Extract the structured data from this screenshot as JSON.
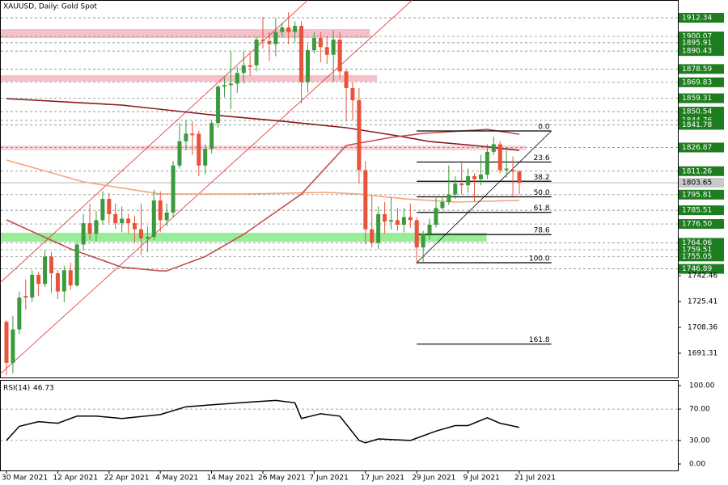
{
  "chart_data": {
    "type": "candlestick",
    "title": "XAUUSD, Daily:  Gold Spot",
    "categories": [
      "30 Mar 2021",
      null,
      null,
      null,
      null,
      null,
      null,
      null,
      "12 Apr 2021",
      null,
      null,
      null,
      null,
      null,
      null,
      null,
      "22 Apr 2021",
      null,
      null,
      null,
      null,
      null,
      null,
      null,
      "4 May 2021",
      null,
      null,
      null,
      null,
      null,
      null,
      null,
      "14 May 2021",
      null,
      null,
      null,
      null,
      null,
      null,
      null,
      "26 May 2021",
      null,
      null,
      null,
      null,
      null,
      null,
      null,
      "7 Jun 2021",
      null,
      null,
      null,
      null,
      null,
      null,
      null,
      "17 Jun 2021",
      null,
      null,
      null,
      null,
      null,
      null,
      null,
      "29 Jun 2021",
      null,
      null,
      null,
      null,
      null,
      null,
      null,
      "9 Jul 2021",
      null,
      null,
      null,
      null,
      null,
      null,
      null,
      "21 Jul 2021"
    ],
    "ohlc": [
      [
        1712,
        1713,
        1677,
        1685
      ],
      [
        1685,
        1716,
        1678,
        1707
      ],
      [
        1707,
        1732,
        1704,
        1728
      ],
      [
        1729,
        1740,
        1720,
        1728
      ],
      [
        1728,
        1746,
        1725,
        1743
      ],
      [
        1743,
        1745,
        1729,
        1737
      ],
      [
        1737,
        1759,
        1735,
        1755
      ],
      [
        1755,
        1758,
        1731,
        1744
      ],
      [
        1744,
        1746,
        1727,
        1732
      ],
      [
        1732,
        1749,
        1725,
        1746
      ],
      [
        1746,
        1751,
        1733,
        1736
      ],
      [
        1736,
        1765,
        1735,
        1763
      ],
      [
        1763,
        1783,
        1759,
        1777
      ],
      [
        1777,
        1790,
        1766,
        1770
      ],
      [
        1770,
        1785,
        1765,
        1779
      ],
      [
        1779,
        1798,
        1776,
        1793
      ],
      [
        1793,
        1797,
        1777,
        1783
      ],
      [
        1783,
        1790,
        1773,
        1777
      ],
      [
        1777,
        1788,
        1771,
        1780
      ],
      [
        1780,
        1783,
        1770,
        1777
      ],
      [
        1777,
        1782,
        1764,
        1773
      ],
      [
        1773,
        1790,
        1756,
        1767
      ],
      [
        1767,
        1775,
        1758,
        1768
      ],
      [
        1768,
        1799,
        1766,
        1792
      ],
      [
        1792,
        1798,
        1771,
        1779
      ],
      [
        1779,
        1790,
        1775,
        1784
      ],
      [
        1784,
        1818,
        1781,
        1815
      ],
      [
        1815,
        1843,
        1813,
        1831
      ],
      [
        1831,
        1845,
        1825,
        1836
      ],
      [
        1836,
        1844,
        1822,
        1835
      ],
      [
        1836,
        1838,
        1808,
        1815
      ],
      [
        1815,
        1829,
        1809,
        1826
      ],
      [
        1826,
        1845,
        1823,
        1843
      ],
      [
        1843,
        1868,
        1840,
        1867
      ],
      [
        1867,
        1873,
        1860,
        1868
      ],
      [
        1868,
        1890,
        1852,
        1869
      ],
      [
        1869,
        1880,
        1863,
        1876
      ],
      [
        1876,
        1890,
        1869,
        1881
      ],
      [
        1881,
        1889,
        1874,
        1880
      ],
      [
        1881,
        1900,
        1877,
        1898
      ],
      [
        1898,
        1913,
        1892,
        1897
      ],
      [
        1897,
        1903,
        1884,
        1895
      ],
      [
        1895,
        1912,
        1887,
        1903
      ],
      [
        1903,
        1909,
        1900,
        1906
      ],
      [
        1906,
        1916,
        1895,
        1903
      ],
      [
        1903,
        1910,
        1896,
        1907
      ],
      [
        1907,
        1910,
        1856,
        1870
      ],
      [
        1870,
        1895,
        1863,
        1891
      ],
      [
        1891,
        1903,
        1889,
        1899
      ],
      [
        1899,
        1903,
        1883,
        1893
      ],
      [
        1893,
        1900,
        1882,
        1888
      ],
      [
        1888,
        1904,
        1870,
        1898
      ],
      [
        1898,
        1903,
        1872,
        1877
      ],
      [
        1877,
        1878,
        1844,
        1866
      ],
      [
        1866,
        1870,
        1845,
        1858
      ],
      [
        1858,
        1866,
        1803,
        1812
      ],
      [
        1812,
        1818,
        1763,
        1773
      ],
      [
        1773,
        1795,
        1761,
        1764
      ],
      [
        1764,
        1788,
        1760,
        1783
      ],
      [
        1783,
        1791,
        1770,
        1778
      ],
      [
        1778,
        1794,
        1773,
        1779
      ],
      [
        1779,
        1787,
        1772,
        1776
      ],
      [
        1776,
        1787,
        1771,
        1781
      ],
      [
        1781,
        1790,
        1774,
        1779
      ],
      [
        1779,
        1781,
        1750,
        1761
      ],
      [
        1761,
        1772,
        1751,
        1770
      ],
      [
        1770,
        1780,
        1766,
        1776
      ],
      [
        1776,
        1795,
        1774,
        1787
      ],
      [
        1787,
        1795,
        1786,
        1791
      ],
      [
        1791,
        1815,
        1789,
        1796
      ],
      [
        1796,
        1808,
        1793,
        1803
      ],
      [
        1803,
        1818,
        1796,
        1802
      ],
      [
        1802,
        1813,
        1797,
        1808
      ],
      [
        1808,
        1810,
        1791,
        1806
      ],
      [
        1806,
        1822,
        1802,
        1809
      ],
      [
        1809,
        1829,
        1806,
        1824
      ],
      [
        1824,
        1834,
        1822,
        1829
      ],
      [
        1829,
        1831,
        1810,
        1812
      ],
      [
        1812,
        1825,
        1807,
        1813
      ],
      [
        1812,
        1821,
        1795,
        1811
      ],
      [
        1811,
        1812,
        1796,
        1803.65
      ]
    ],
    "up_color": "#3c9a3c",
    "down_color": "#e8533a",
    "xlim": [
      -1.01,
      104.73
    ],
    "ylim": [
      1675.33,
      1924.06
    ],
    "yticks": [
      1742.46,
      1725.41,
      1708.36,
      1691.31
    ],
    "price_levels": [
      1912.34,
      1900.07,
      1895.91,
      1890.43,
      1878.59,
      1869.83,
      1859.31,
      1850.54,
      1844.76,
      1841.78,
      1826.87,
      1811.26,
      1795.81,
      1785.51,
      {
        "value": 1776.5,
        "label": "1776.50"
      },
      1764.06,
      1759.51,
      1755.05,
      1746.89
    ],
    "level_color": "#1e7d1e",
    "current_price": 1803.65,
    "zones": [
      {
        "from": 1904.9,
        "to": 1899.0,
        "x_end": 56.7,
        "color": "#f6c0c8"
      },
      {
        "from": 1874.5,
        "to": 1870.3,
        "x_end": 57.8,
        "color": "#f6c0c8"
      },
      {
        "from": 1828.2,
        "to": 1825.0,
        "x_end": 81,
        "color": "#f8d4d8"
      },
      {
        "from": 1770.7,
        "to": 1764.8,
        "x_end": 74.9,
        "color": "#98ee98"
      }
    ],
    "overlays": [
      {
        "color": "#8b1a1a",
        "x": [
          0,
          18,
          32,
          43,
          53,
          61,
          66,
          73,
          80
        ],
        "values": [
          1859.1,
          1854.8,
          1848.4,
          1844.2,
          1839.9,
          1834.6,
          1830.8,
          1828.2,
          1825.0
        ]
      },
      {
        "color": "#f4a57a",
        "x": [
          0,
          12,
          24,
          37,
          50,
          55,
          62,
          70,
          80
        ],
        "values": [
          1818.6,
          1804.2,
          1796.2,
          1796.2,
          1797.3,
          1796.2,
          1793.1,
          1790.9,
          1792.0
        ]
      },
      {
        "color": "#c0504d",
        "x": [
          0,
          10,
          18,
          24,
          25,
          31,
          37,
          46,
          53,
          60,
          65,
          75,
          80
        ],
        "values": [
          1779.2,
          1760.0,
          1748.0,
          1745.6,
          1745.6,
          1755.0,
          1769.6,
          1796.2,
          1828.2,
          1833.5,
          1836.2,
          1838.8,
          1835.6
        ]
      }
    ],
    "trendlines": [
      {
        "color": "#e03030",
        "start": [
          -1,
          1737.7
        ],
        "end": [
          47,
          1924.0
        ]
      },
      {
        "color": "#e03030",
        "start": [
          -1,
          1677.5
        ],
        "end": [
          63.3,
          1924.0
        ]
      }
    ],
    "fib": {
      "high": 1837.78,
      "low": 1750.97,
      "start": 64,
      "end": 85,
      "levels": [
        {
          "value": 0,
          "label": "0.0"
        },
        23.6,
        38.2,
        {
          "value": 50,
          "label": "50.0"
        },
        61.8,
        78.6,
        {
          "value": 100,
          "label": "100.0"
        },
        161.8
      ]
    },
    "rsi": {
      "label": "RSI(14)",
      "value": 46.73,
      "color": "#000000",
      "ylim": [
        -8.25,
        107.2
      ],
      "yticks": [
        {
          "value": 100,
          "label": "100.00"
        },
        {
          "value": 70,
          "label": "70.00"
        },
        {
          "value": 30,
          "label": "30.00"
        },
        {
          "value": 0,
          "label": "0.00"
        }
      ],
      "levels": [
        70,
        30
      ],
      "x": [
        0,
        2,
        5,
        8,
        11,
        14,
        18,
        24,
        28,
        33,
        38,
        42,
        45,
        46,
        49,
        52,
        55,
        56,
        58,
        63,
        67,
        70,
        72,
        75,
        77,
        80
      ],
      "values": [
        30,
        48,
        54,
        52,
        61,
        61,
        58,
        63,
        73,
        76,
        79,
        81,
        78,
        58,
        64,
        61,
        30,
        27,
        32,
        30,
        42,
        49,
        49,
        59,
        52,
        46.73
      ]
    }
  }
}
